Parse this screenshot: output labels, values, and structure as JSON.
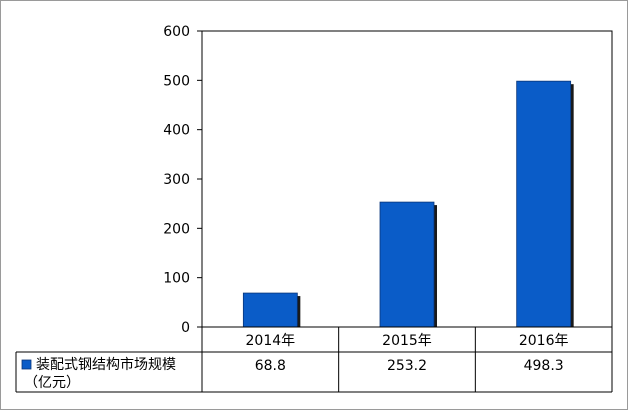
{
  "chart_data": {
    "type": "bar",
    "categories": [
      "2014年",
      "2015年",
      "2016年"
    ],
    "series": [
      {
        "name": "装配式钢结构市场规模（亿元）",
        "values": [
          68.8,
          253.2,
          498.3
        ]
      }
    ],
    "series_label_lines": [
      "装配式钢结构市场规模",
      "（亿元）"
    ],
    "table_values": [
      "68.8",
      "253.2",
      "498.3"
    ],
    "y_ticks": [
      "0",
      "100",
      "200",
      "300",
      "400",
      "500",
      "600"
    ],
    "ylim": [
      0,
      600
    ],
    "grid": false,
    "legend": "data-table",
    "colors": {
      "bar": "#0a5cc8",
      "bar_shadow": "#1a1a1a",
      "axis": "#000000"
    }
  }
}
